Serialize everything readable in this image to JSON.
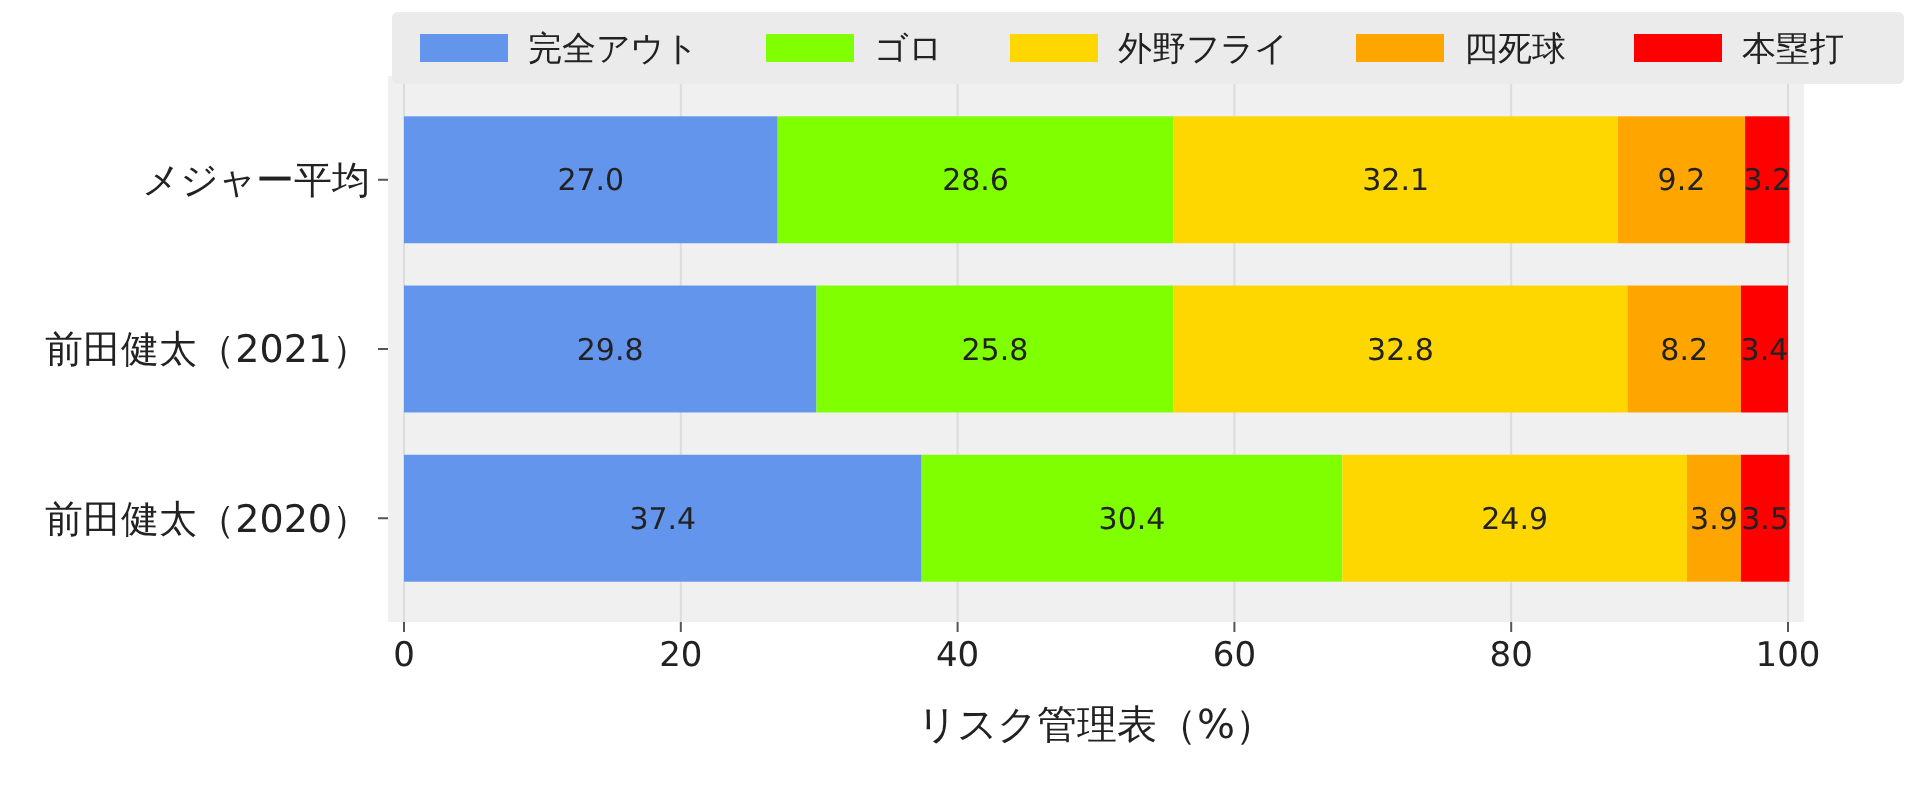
{
  "chart_data": {
    "type": "bar",
    "orientation": "horizontal",
    "stacked": true,
    "grid": "x",
    "legend": "top right",
    "xlabel": "リスク管理表（%）",
    "categories": [
      "メジャー平均",
      "前田健太（2021）",
      "前田健太（2020）"
    ],
    "xlim": [
      0,
      100
    ],
    "xticks": [
      0,
      20,
      40,
      60,
      80,
      100
    ],
    "series": [
      {
        "name": "完全アウト",
        "color": "#6495ed",
        "values": [
          27.0,
          29.8,
          37.4
        ],
        "value_labels": [
          "27.0",
          "29.8",
          "37.4"
        ]
      },
      {
        "name": "ゴロ",
        "color": "#7fff00",
        "values": [
          28.6,
          25.8,
          30.4
        ],
        "value_labels": [
          "28.6",
          "25.8",
          "30.4"
        ]
      },
      {
        "name": "外野フライ",
        "color": "#ffd700",
        "values": [
          32.1,
          32.8,
          24.9
        ],
        "value_labels": [
          "32.1",
          "32.8",
          "24.9"
        ]
      },
      {
        "name": "四死球",
        "color": "#ffa500",
        "values": [
          9.2,
          8.2,
          3.9
        ],
        "value_labels": [
          "9.2",
          "8.2",
          "3.9"
        ]
      },
      {
        "name": "本塁打",
        "color": "#ff0000",
        "values": [
          3.2,
          3.4,
          3.5
        ],
        "value_labels": [
          "3.2",
          "3.4",
          "3.5"
        ]
      }
    ]
  }
}
